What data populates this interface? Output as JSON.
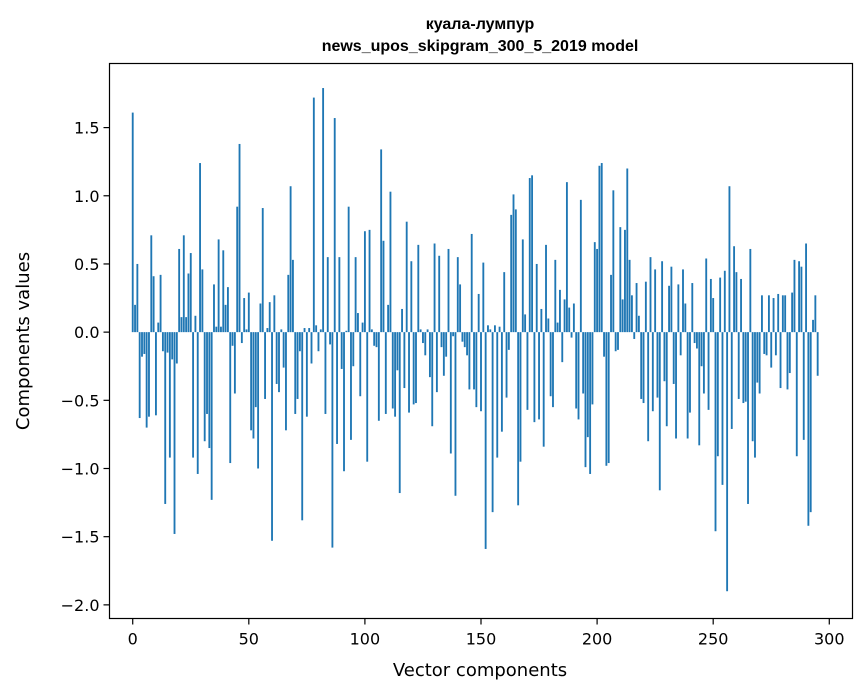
{
  "chart_data": {
    "type": "bar",
    "title_line1": "куала-лумпур",
    "title_line2": "news_upos_skipgram_300_5_2019 model",
    "xlabel": "Vector components",
    "ylabel": "Components values",
    "xlim": [
      -10,
      310
    ],
    "ylim": [
      -2.1,
      1.97
    ],
    "xticks": [
      0,
      50,
      100,
      150,
      200,
      250,
      300
    ],
    "xtick_labels": [
      "0",
      "50",
      "100",
      "150",
      "200",
      "250",
      "300"
    ],
    "yticks": [
      1.5,
      1.0,
      0.5,
      0.0,
      -0.5,
      -1.0,
      -1.5,
      -2.0
    ],
    "ytick_labels": [
      "1.5",
      "1.0",
      "0.5",
      "0.0",
      "−0.5",
      "−1.0",
      "−1.5",
      "−2.0"
    ],
    "grid": false,
    "bar_color": "#1f77b4",
    "values": [
      1.61,
      0.2,
      0.5,
      -0.63,
      -0.18,
      -0.16,
      -0.7,
      -0.62,
      0.71,
      0.41,
      -0.61,
      0.07,
      0.42,
      -0.14,
      -1.26,
      -0.15,
      -0.92,
      -0.2,
      -1.48,
      -0.23,
      0.61,
      0.11,
      0.71,
      0.11,
      0.43,
      0.58,
      -0.92,
      0.12,
      -1.04,
      1.24,
      0.46,
      -0.8,
      -0.6,
      -0.85,
      -1.23,
      0.35,
      0.04,
      0.68,
      0.04,
      0.6,
      0.2,
      0.33,
      -0.96,
      -0.1,
      -0.45,
      0.92,
      1.38,
      -0.08,
      0.25,
      0.02,
      0.29,
      -0.72,
      -0.78,
      -0.55,
      -1.0,
      0.21,
      0.91,
      -0.49,
      0.03,
      0.22,
      -1.53,
      0.27,
      -0.38,
      -0.44,
      0.02,
      -0.26,
      -0.72,
      0.42,
      1.07,
      0.53,
      -0.6,
      -0.49,
      -0.14,
      -1.38,
      0.03,
      -0.62,
      0.03,
      -0.23,
      1.72,
      0.05,
      -0.14,
      0.02,
      1.79,
      -0.6,
      0.55,
      -0.09,
      -1.58,
      1.57,
      -0.82,
      0.55,
      -0.27,
      -1.02,
      0.01,
      0.92,
      -0.79,
      -0.25,
      0.55,
      0.14,
      -0.47,
      0.07,
      0.74,
      -0.95,
      0.75,
      0.02,
      -0.1,
      -0.11,
      -0.65,
      1.34,
      0.67,
      -0.6,
      0.2,
      1.03,
      -0.56,
      -0.62,
      -0.28,
      -1.18,
      0.17,
      -0.41,
      0.81,
      -0.59,
      0.52,
      -0.53,
      -0.52,
      0.64,
      0.02,
      -0.08,
      -0.17,
      0.02,
      -0.33,
      -0.69,
      0.65,
      -0.44,
      0.56,
      -0.11,
      -0.32,
      -0.18,
      0.61,
      -0.89,
      -0.03,
      -1.2,
      0.55,
      0.35,
      -0.07,
      -0.11,
      -0.17,
      -0.42,
      0.72,
      -0.42,
      -0.55,
      0.28,
      -0.58,
      0.51,
      -1.59,
      0.05,
      0.02,
      -1.32,
      0.05,
      -0.92,
      0.04,
      -0.73,
      0.44,
      -0.48,
      -0.13,
      0.86,
      1.01,
      0.9,
      -1.27,
      -0.95,
      0.68,
      0.13,
      -0.57,
      1.13,
      1.15,
      -0.66,
      0.5,
      -0.64,
      0.17,
      -0.84,
      0.64,
      0.1,
      -0.47,
      -0.55,
      0.53,
      0.07,
      0.31,
      -0.22,
      0.24,
      1.1,
      0.18,
      -0.04,
      0.21,
      -0.56,
      -0.64,
      0.97,
      -0.45,
      -0.99,
      -0.77,
      -1.04,
      -0.53,
      0.66,
      0.61,
      1.22,
      1.24,
      -0.18,
      -0.98,
      -0.96,
      0.42,
      1.04,
      -0.14,
      -0.13,
      0.77,
      0.24,
      0.75,
      1.2,
      0.53,
      0.27,
      -0.05,
      0.36,
      0.12,
      -0.49,
      -0.52,
      0.37,
      -0.8,
      0.55,
      -0.58,
      0.46,
      -0.48,
      -1.16,
      0.52,
      -0.36,
      -0.69,
      0.34,
      0.48,
      -0.38,
      -0.78,
      0.35,
      -0.17,
      0.46,
      0.21,
      -0.78,
      -0.59,
      0.36,
      -0.08,
      -0.12,
      -0.83,
      -0.25,
      -0.45,
      0.54,
      -0.57,
      0.39,
      0.25,
      -1.46,
      -0.91,
      0.4,
      -1.12,
      0.45,
      -1.9,
      1.07,
      -0.71,
      0.63,
      0.44,
      -0.49,
      0.39,
      -0.52,
      -0.51,
      -1.26,
      0.61,
      -0.8,
      -0.92,
      -0.37,
      -0.45,
      0.27,
      -0.16,
      -0.17,
      0.27,
      -0.26,
      0.25,
      -0.17,
      0.28,
      -0.41,
      0.27,
      0.27,
      -0.42,
      -0.3,
      0.29,
      0.53,
      -0.91,
      0.52,
      0.48,
      -0.79,
      0.65,
      -1.42,
      -1.32,
      0.09,
      0.27,
      -0.32
    ]
  }
}
